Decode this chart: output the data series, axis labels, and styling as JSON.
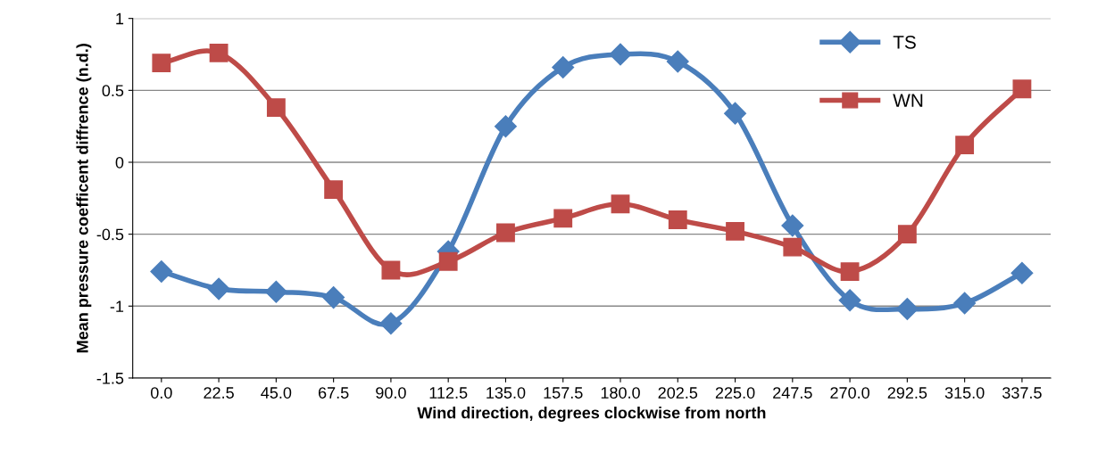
{
  "chart_data": {
    "type": "line",
    "xlabel": "Wind direction, degrees clockwise from north",
    "ylabel": "Mean pressure coefficent diffrence (n.d.)",
    "categories": [
      "0.0",
      "22.5",
      "45.0",
      "67.5",
      "90.0",
      "112.5",
      "135.0",
      "157.5",
      "180.0",
      "202.5",
      "225.0",
      "247.5",
      "270.0",
      "292.5",
      "315.0",
      "337.5"
    ],
    "series": [
      {
        "name": "TS",
        "color": "#4a7ebb",
        "marker": "diamond",
        "values": [
          -0.76,
          -0.88,
          -0.9,
          -0.94,
          -1.12,
          -0.62,
          0.25,
          0.66,
          0.75,
          0.7,
          0.34,
          -0.44,
          -0.96,
          -1.02,
          -0.98,
          -0.77
        ]
      },
      {
        "name": "WN",
        "color": "#be4b48",
        "marker": "square",
        "values": [
          0.69,
          0.76,
          0.38,
          -0.19,
          -0.75,
          -0.69,
          -0.49,
          -0.39,
          -0.29,
          -0.4,
          -0.48,
          -0.59,
          -0.76,
          -0.5,
          0.12,
          0.51
        ]
      }
    ],
    "ylim": [
      -1.5,
      1
    ],
    "yticks": [
      -1.5,
      -1,
      -0.5,
      0,
      0.5,
      1
    ],
    "grid": "y",
    "legend": "top right",
    "line_style": "solid"
  }
}
